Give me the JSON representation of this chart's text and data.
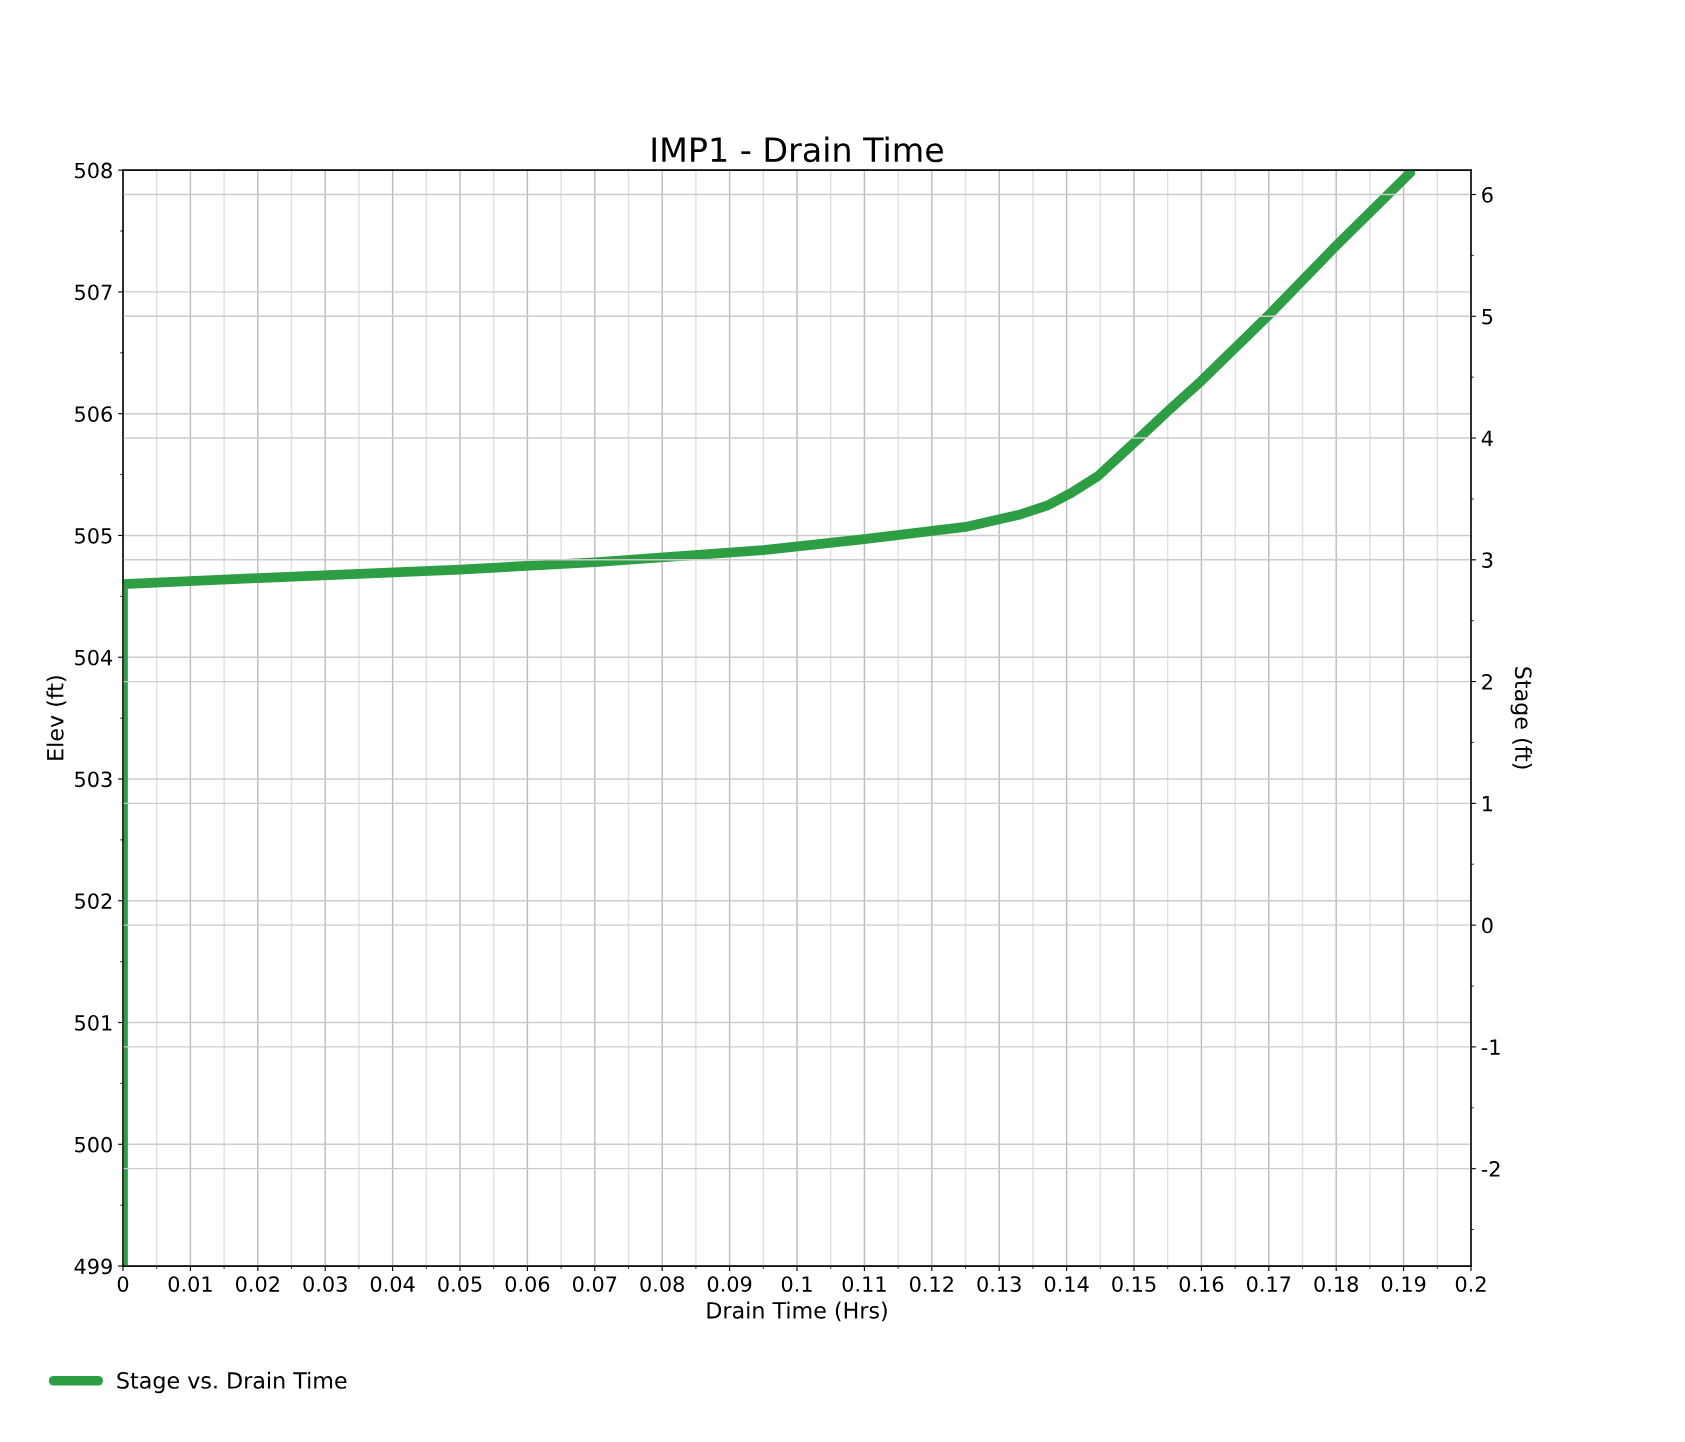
{
  "chart_data": {
    "type": "line",
    "title": "IMP1 - Drain Time",
    "xlabel": "Drain Time (Hrs)",
    "ylabel": "Elev (ft)",
    "y2label": "Stage (ft)",
    "series": [
      {
        "name": "Stage vs. Drain Time",
        "color": "#2e9e45",
        "x": [
          0,
          0,
          0.02,
          0.05,
          0.07,
          0.095,
          0.11,
          0.125,
          0.133,
          0.1373,
          0.1407,
          0.1447,
          0.15,
          0.155,
          0.16,
          0.17,
          0.18,
          0.191
        ],
        "values": [
          499,
          504.6,
          504.65,
          504.72,
          504.78,
          504.88,
          504.97,
          505.07,
          505.17,
          505.25,
          505.35,
          505.49,
          505.76,
          506.02,
          506.27,
          506.81,
          507.38,
          507.98
        ]
      }
    ],
    "xlim": [
      0,
      0.2
    ],
    "xticks": [
      0,
      0.01,
      0.02,
      0.03,
      0.04,
      0.05,
      0.06,
      0.07,
      0.08,
      0.09,
      0.1,
      0.11,
      0.12,
      0.13,
      0.14,
      0.15,
      0.16,
      0.17,
      0.18,
      0.19,
      0.2
    ],
    "ylim": [
      499,
      508
    ],
    "yticks": [
      499,
      500,
      501,
      502,
      503,
      504,
      505,
      506,
      507,
      508
    ],
    "y2lim": [
      -2.8,
      6.2
    ],
    "y2ticks": [
      -2,
      -1,
      0,
      1,
      2,
      3,
      4,
      5,
      6
    ],
    "grid": true,
    "legend": "bottom left",
    "marker": "none",
    "line_style": "solid"
  }
}
